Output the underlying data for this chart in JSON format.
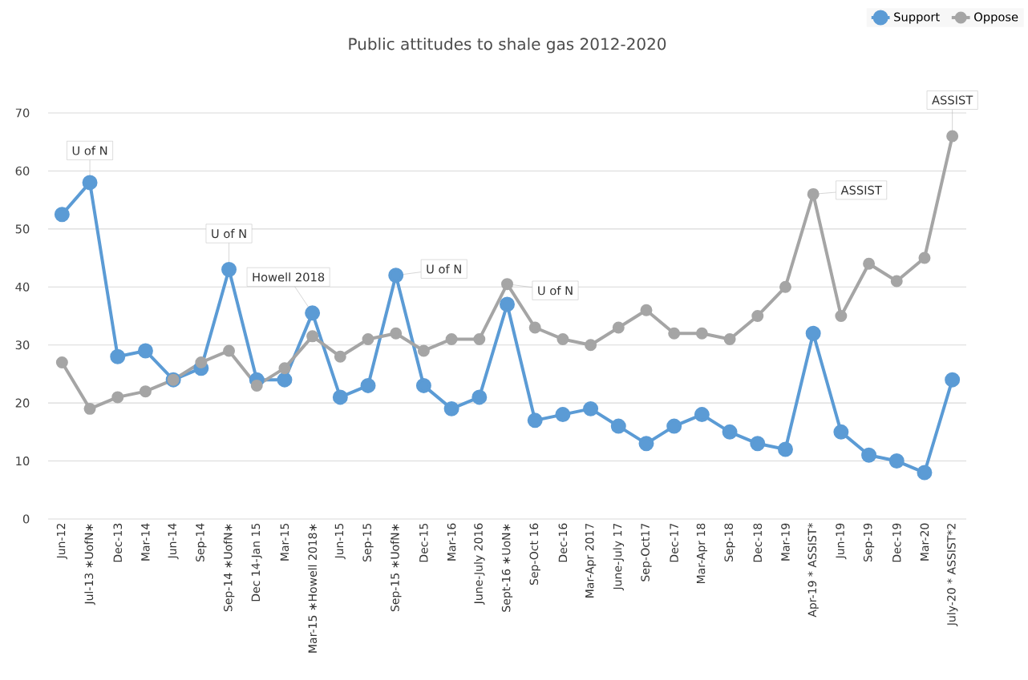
{
  "chart_data": {
    "type": "line",
    "title": "Public attitudes to shale gas 2012-2020",
    "categories": [
      "Jun-12",
      "Jul-13 ∗UofN∗",
      "Dec-13",
      "Mar-14",
      "Jun-14",
      "Sep-14",
      "Sep-14 ∗UofN∗",
      "Dec 14-Jan 15",
      "Mar-15",
      "Mar-15 ∗Howell 2018∗",
      "Jun-15",
      "Sep-15",
      "Sep-15 ∗UofN∗",
      "Dec-15",
      "Mar-16",
      "June-July 2016",
      "Sept-16 ∗UoN∗",
      "Sep-Oct 16",
      "Dec-16",
      "Mar-Apr 2017",
      "June-July 17",
      "Sep-Oct17",
      "Dec-17",
      "Mar-Apr 18",
      "Sep-18",
      "Dec-18",
      "Mar-19",
      "Apr-19 * ASSIST*",
      "Jun-19",
      "Sep-19",
      "Dec-19",
      "Mar-20",
      "July-20 * ASSIST*2"
    ],
    "series": [
      {
        "name": "Support",
        "color": "#5b9bd5",
        "values": [
          52.5,
          58,
          28,
          29,
          24,
          26,
          43,
          24,
          24,
          35.5,
          21,
          23,
          42,
          23,
          19,
          21,
          37,
          17,
          18,
          19,
          16,
          13,
          16,
          18,
          15,
          13,
          12,
          32,
          15,
          11,
          10,
          8,
          24
        ]
      },
      {
        "name": "Oppose",
        "color": "#a5a5a5",
        "values": [
          27,
          19,
          21,
          22,
          24,
          27,
          29,
          23,
          26,
          31.5,
          28,
          31,
          32,
          29,
          31,
          31,
          40.5,
          33,
          31,
          30,
          33,
          36,
          32,
          32,
          31,
          35,
          40,
          56,
          35,
          44,
          41,
          45,
          66
        ]
      }
    ],
    "ylim": [
      0,
      70
    ],
    "yticks": [
      0,
      10,
      20,
      30,
      40,
      50,
      60,
      70
    ],
    "grid": "y",
    "legend": "top right",
    "marker": "circle",
    "line_style": "solid",
    "annotations": [
      {
        "text": "U of N",
        "x": "Jul-13 ∗UofN∗",
        "y": 58
      },
      {
        "text": "U of N",
        "x": "Sep-14 ∗UofN∗",
        "y": 43
      },
      {
        "text": "Howell 2018",
        "x": "Mar-15 ∗Howell 2018∗",
        "y": 35.5
      },
      {
        "text": "U of N",
        "x": "Sep-15 ∗UofN∗",
        "y": 42
      },
      {
        "text": "U of N",
        "x": "Sept-16 ∗UoN∗",
        "y": 40.5
      },
      {
        "text": "ASSIST",
        "x": "Apr-19 * ASSIST*",
        "y": 56
      },
      {
        "text": "ASSIST",
        "x": "July-20 * ASSIST*2",
        "y": 66
      }
    ]
  }
}
